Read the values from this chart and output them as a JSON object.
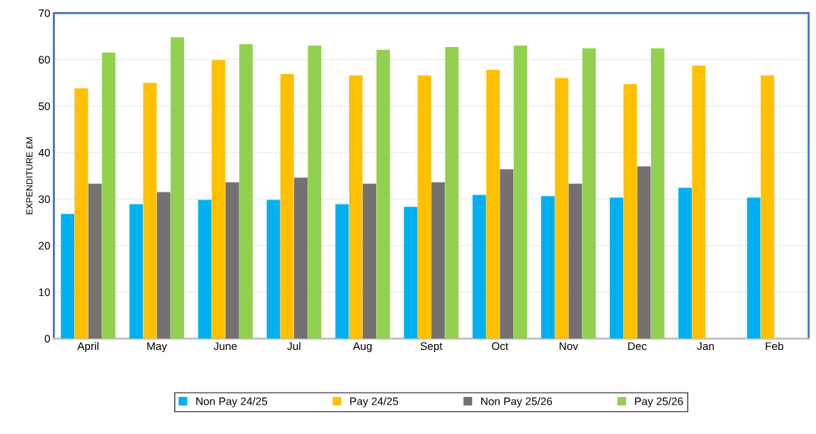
{
  "chart_data": {
    "type": "bar",
    "ylabel": "EXPENDITURE £M",
    "categories": [
      "April",
      "May",
      "June",
      "Jul",
      "Aug",
      "Sept",
      "Oct",
      "Nov",
      "Dec",
      "Jan",
      "Feb"
    ],
    "series": [
      {
        "name": "Non Pay 24/25",
        "color": "#00b0f0",
        "values": [
          26.8,
          28.9,
          29.8,
          29.8,
          28.9,
          28.3,
          30.9,
          30.6,
          30.3,
          32.4,
          30.3
        ]
      },
      {
        "name": "Pay 24/25",
        "color": "#ffc000",
        "values": [
          53.8,
          55.0,
          59.9,
          56.9,
          56.6,
          56.6,
          57.8,
          56.0,
          54.7,
          58.7,
          56.6
        ]
      },
      {
        "name": "Non Pay 25/26",
        "color": "#767171",
        "values": [
          33.3,
          31.5,
          33.6,
          34.6,
          33.3,
          33.6,
          36.4,
          33.3,
          37.0,
          null,
          null
        ]
      },
      {
        "name": "Pay 25/26",
        "color": "#92d050",
        "values": [
          61.5,
          64.8,
          63.3,
          63.0,
          62.1,
          62.7,
          63.0,
          62.4,
          62.4,
          null,
          null
        ]
      }
    ],
    "ylim": [
      0,
      70
    ],
    "yticks": [
      0,
      10,
      20,
      30,
      40,
      50,
      60,
      70
    ],
    "grid": "y",
    "legend": "bottom"
  }
}
